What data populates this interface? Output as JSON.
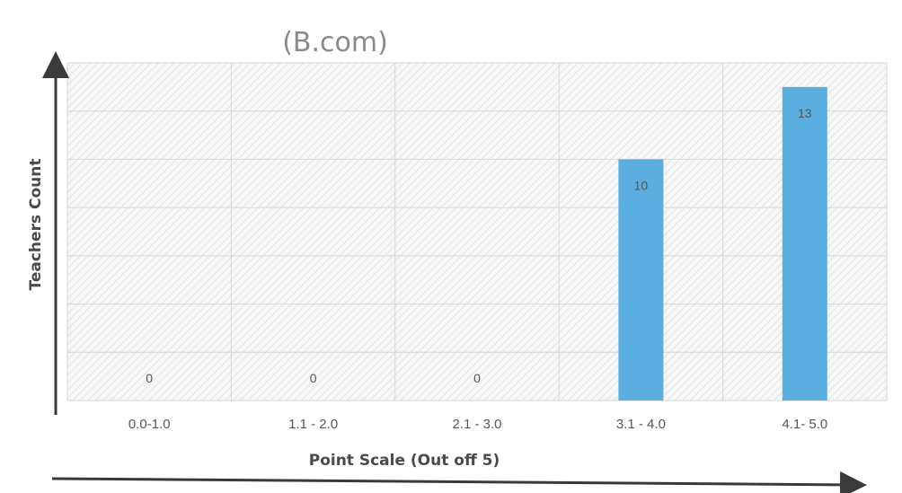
{
  "chart_data": {
    "type": "bar",
    "title": "(B.com)",
    "xlabel": "Point Scale (Out off 5)",
    "ylabel": "Teachers Count",
    "categories": [
      "0.0-1.0",
      "1.1 - 2.0",
      "2.1 - 3.0",
      "3.1 - 4.0",
      "4.1- 5.0"
    ],
    "values": [
      0,
      0,
      0,
      10,
      13
    ],
    "data_labels": [
      "0",
      "0",
      "0",
      "10",
      "13"
    ],
    "ylim": [
      0,
      14
    ],
    "grid": true,
    "legend": "none",
    "colors": {
      "bar": "#5aaee0",
      "grid": "#d6d6d6",
      "axis_arrow": "#3a3a3a"
    }
  }
}
